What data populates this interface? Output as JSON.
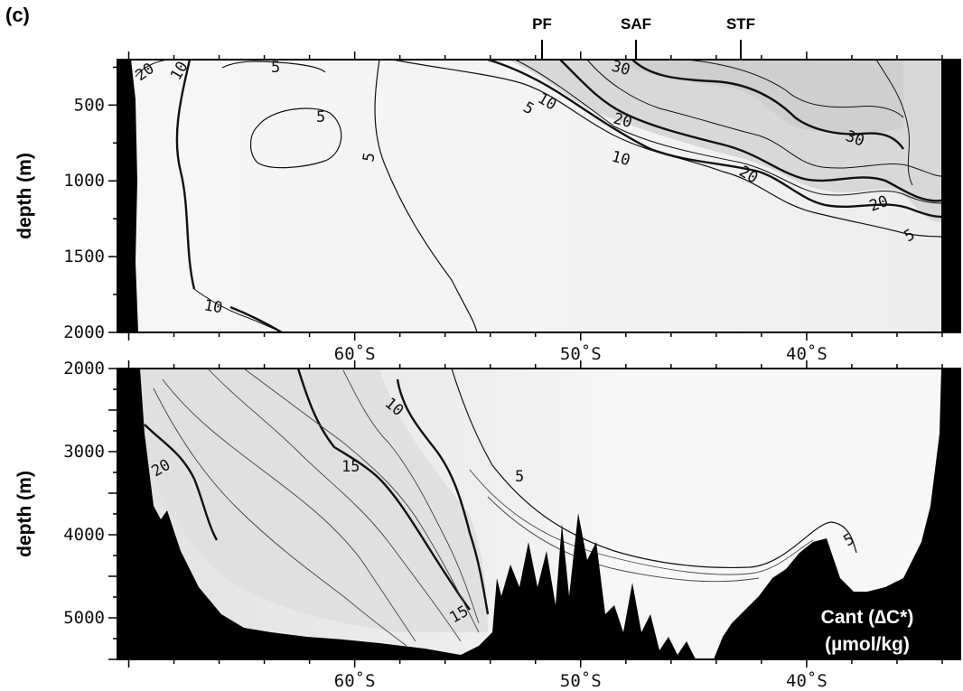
{
  "panel_label": "(c)",
  "fronts": [
    {
      "name": "PF",
      "lat": -50.9
    },
    {
      "name": "SAF",
      "lat": -46.8
    },
    {
      "name": "STF",
      "lat": -42.2
    }
  ],
  "legend_text": {
    "line1": "Cant (∆C*)",
    "line2": "(µmol/kg)"
  },
  "chart_data": [
    {
      "type": "contour",
      "title": "",
      "xlabel": "",
      "ylabel": "depth (m)",
      "xlim": [
        -70.5,
        -33.2
      ],
      "ylim": [
        2000,
        200
      ],
      "x_ticks": [
        {
          "value": -60,
          "label": "60˚S"
        },
        {
          "value": -50,
          "label": "50˚S"
        },
        {
          "value": -40,
          "label": "40˚S"
        }
      ],
      "y_ticks": [
        {
          "value": 500,
          "label": "500"
        },
        {
          "value": 1000,
          "label": "1000"
        },
        {
          "value": 1500,
          "label": "1500"
        },
        {
          "value": 2000,
          "label": "2000"
        }
      ],
      "contour_labels": [
        {
          "text": "20",
          "lat": -69.8,
          "depth": 260
        },
        {
          "text": "10",
          "lat": -67.6,
          "depth": 290
        },
        {
          "text": "5",
          "lat": -63.7,
          "depth": 240
        },
        {
          "text": "5",
          "lat": -61.3,
          "depth": 550
        },
        {
          "text": "5",
          "lat": -58.5,
          "depth": 870
        },
        {
          "text": "10",
          "lat": -62.3,
          "depth": 1700
        },
        {
          "text": "30",
          "lat": -46.8,
          "depth": 250
        },
        {
          "text": "10",
          "lat": -51.3,
          "depth": 380
        },
        {
          "text": "5",
          "lat": -52.3,
          "depth": 460
        },
        {
          "text": "20",
          "lat": -47.5,
          "depth": 540
        },
        {
          "text": "10",
          "lat": -46.1,
          "depth": 860
        },
        {
          "text": "30",
          "lat": -37.7,
          "depth": 730
        },
        {
          "text": "20",
          "lat": -42.3,
          "depth": 980
        },
        {
          "text": "20",
          "lat": -36.3,
          "depth": 1210
        },
        {
          "text": "5",
          "lat": -34.6,
          "depth": 1500
        }
      ]
    },
    {
      "type": "contour",
      "title": "",
      "xlabel": "",
      "ylabel": "depth (m)",
      "xlim": [
        -70.5,
        -33.2
      ],
      "ylim": [
        5500,
        2000
      ],
      "x_ticks": [
        {
          "value": -60,
          "label": "60˚S"
        },
        {
          "value": -50,
          "label": "50˚S"
        },
        {
          "value": -40,
          "label": "40˚S"
        }
      ],
      "y_ticks": [
        {
          "value": 3000,
          "label": "3000"
        },
        {
          "value": 4000,
          "label": "4000"
        },
        {
          "value": 5000,
          "label": "5000"
        }
      ],
      "y_top_label": "2000",
      "contour_labels": [
        {
          "text": "20",
          "lat": -68.3,
          "depth": 3300
        },
        {
          "text": "15",
          "lat": -59.0,
          "depth": 3250
        },
        {
          "text": "10",
          "lat": -56.3,
          "depth": 2300
        },
        {
          "text": "5",
          "lat": -52.3,
          "depth": 3400
        },
        {
          "text": "5",
          "lat": -38.6,
          "depth": 4050
        },
        {
          "text": "15",
          "lat": -54.2,
          "depth": 4800
        }
      ]
    }
  ]
}
